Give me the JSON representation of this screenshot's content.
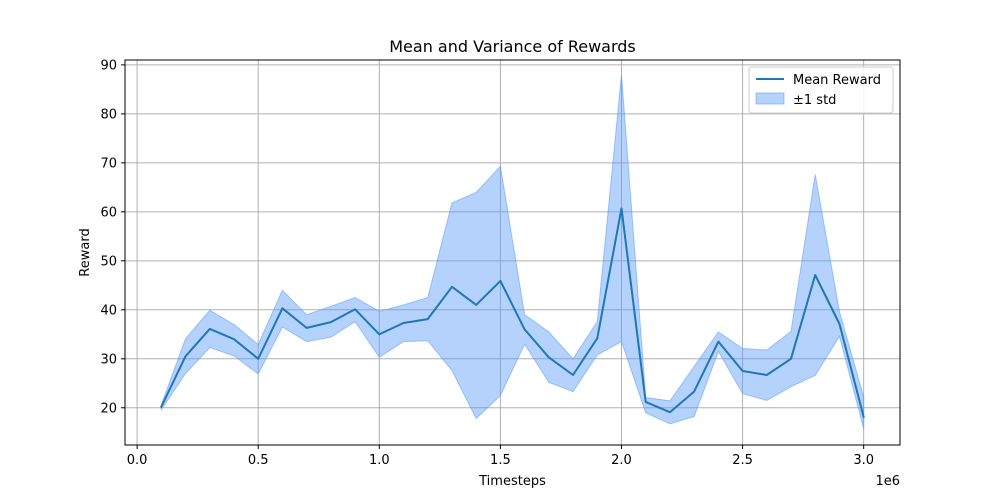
{
  "chart_data": {
    "type": "line",
    "title": "Mean and Variance of Rewards",
    "xlabel": "Timesteps",
    "ylabel": "Reward",
    "x_offset_text": "1e6",
    "xlim": [
      -0.05,
      3.15
    ],
    "ylim": [
      12.4,
      91.0
    ],
    "xticks": [
      0.0,
      0.5,
      1.0,
      1.5,
      2.0,
      2.5,
      3.0
    ],
    "xtick_labels": [
      "0.0",
      "0.5",
      "1.0",
      "1.5",
      "2.0",
      "2.5",
      "3.0"
    ],
    "yticks": [
      20,
      30,
      40,
      50,
      60,
      70,
      80,
      90
    ],
    "ytick_labels": [
      "20",
      "30",
      "40",
      "50",
      "60",
      "70",
      "80",
      "90"
    ],
    "grid": true,
    "legend_position": "top-right",
    "x": [
      0.1,
      0.2,
      0.3,
      0.4,
      0.5,
      0.6,
      0.7,
      0.8,
      0.9,
      1.0,
      1.1,
      1.2,
      1.3,
      1.4,
      1.5,
      1.6,
      1.7,
      1.8,
      1.9,
      2.0,
      2.1,
      2.2,
      2.3,
      2.4,
      2.5,
      2.6,
      2.7,
      2.8,
      2.9,
      3.0
    ],
    "series": [
      {
        "name": "Mean Reward",
        "kind": "line",
        "color": "#1f77b4",
        "values": [
          20.2,
          30.5,
          36.1,
          34.0,
          30.0,
          40.3,
          36.3,
          37.5,
          40.1,
          35.0,
          37.3,
          38.1,
          44.7,
          41.0,
          45.9,
          36.0,
          30.3,
          26.7,
          34.2,
          60.7,
          21.2,
          19.1,
          23.3,
          33.5,
          27.5,
          26.7,
          30.0,
          47.1,
          37.1,
          18.1
        ]
      },
      {
        "name": "±1 std",
        "kind": "band",
        "color": "#5a9cf8",
        "upper": [
          20.6,
          34.1,
          39.9,
          37.0,
          32.9,
          44.0,
          39.0,
          40.7,
          42.5,
          39.7,
          41.0,
          42.5,
          61.8,
          64.0,
          69.3,
          39.0,
          35.5,
          30.0,
          37.6,
          88.0,
          22.1,
          21.4,
          28.4,
          35.5,
          32.1,
          31.8,
          35.6,
          67.6,
          39.6,
          22.2
        ],
        "lower": [
          19.6,
          27.0,
          32.3,
          30.6,
          26.9,
          36.5,
          33.5,
          34.4,
          37.6,
          30.3,
          33.5,
          33.7,
          27.6,
          17.8,
          22.5,
          33.0,
          25.2,
          23.3,
          30.8,
          33.5,
          19.0,
          16.7,
          18.2,
          31.5,
          22.9,
          21.5,
          24.3,
          26.6,
          34.6,
          15.7
        ]
      }
    ]
  }
}
